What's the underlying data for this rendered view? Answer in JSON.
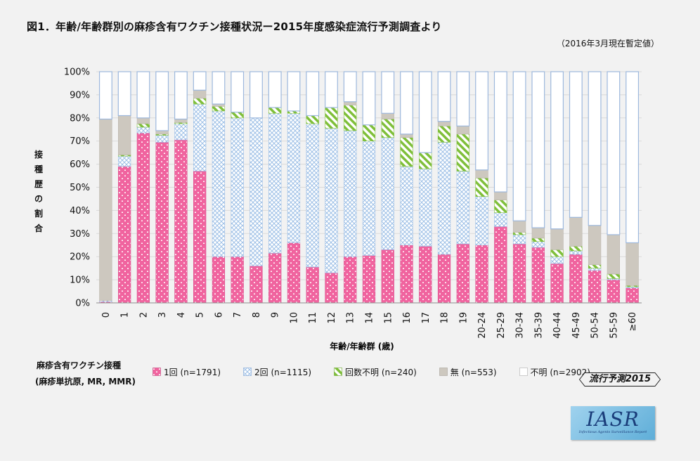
{
  "header": {
    "title": "図1．年齢/年齢群別の麻疹含有ワクチン接種状況ー2015年度感染症流行予測調査より",
    "note": "（2016年3月現在暫定値）"
  },
  "legend": {
    "title": "麻疹含有ワクチン接種",
    "subtitle": "(麻疹単抗原, MR, MMR)",
    "items": [
      {
        "label": "1回 (n=1791)"
      },
      {
        "label": "2回 (n=1115)"
      },
      {
        "label": "回数不明 (n=240)"
      },
      {
        "label": "無 (n=553)"
      },
      {
        "label": "不明 (n=2902)"
      }
    ]
  },
  "badge": {
    "label": "流行予測2015"
  },
  "logo": {
    "text": "IASR",
    "subtext": "Infectious Agents Surveillance Report"
  },
  "chart_data": {
    "type": "bar",
    "stacked": true,
    "xlabel": "年齢/年齢群 (歳)",
    "ylabel": "接種歴の割合",
    "ylim": [
      0,
      100
    ],
    "yticks": [
      "0%",
      "10%",
      "20%",
      "30%",
      "40%",
      "50%",
      "60%",
      "70%",
      "80%",
      "90%",
      "100%"
    ],
    "categories": [
      "0",
      "1",
      "2",
      "3",
      "4",
      "5",
      "6",
      "7",
      "8",
      "9",
      "10",
      "11",
      "12",
      "13",
      "14",
      "15",
      "16",
      "17",
      "18",
      "19",
      "20-24",
      "25-29",
      "30-34",
      "35-39",
      "40-44",
      "45-49",
      "50-54",
      "55-59",
      "≥60"
    ],
    "series": [
      {
        "name": "1回 (n=1791)",
        "color": "#f06aa3",
        "pattern": "pink",
        "values": [
          0.5,
          59,
          73.5,
          69.5,
          70.5,
          57,
          20,
          20,
          16,
          21.5,
          26,
          15.5,
          13,
          20,
          20.5,
          23,
          25,
          24.5,
          21,
          25.5,
          25,
          33,
          25.5,
          24,
          17,
          21,
          14,
          10,
          6.5
        ]
      },
      {
        "name": "2回 (n=1115)",
        "color": "#a9c8ec",
        "pattern": "blue",
        "values": [
          0.5,
          4.5,
          2.5,
          3,
          7,
          29,
          63,
          60,
          64,
          60.5,
          56,
          62,
          62.5,
          54.5,
          49.5,
          48.5,
          34,
          33.5,
          48.5,
          31.5,
          21,
          6,
          4,
          2.5,
          3,
          1.5,
          1,
          0.5,
          0.5
        ]
      },
      {
        "name": "回数不明 (n=240)",
        "color": "#8cc63f",
        "pattern": "green",
        "values": [
          0,
          0.5,
          1.5,
          0.5,
          0.5,
          2.5,
          2,
          2.5,
          0,
          2.5,
          1,
          3.5,
          9,
          11,
          7,
          8,
          12.5,
          7,
          7,
          16,
          8,
          5.5,
          1,
          1.5,
          3,
          2,
          1.5,
          2,
          0.5
        ]
      },
      {
        "name": "無 (n=553)",
        "color": "#cdc8bf",
        "pattern": "none",
        "values": [
          78.5,
          17,
          2.5,
          1.5,
          1.5,
          3.5,
          1,
          0,
          0,
          0,
          0,
          0,
          0,
          1.5,
          0,
          2.5,
          1.5,
          0,
          2,
          3.5,
          3.5,
          3.5,
          5,
          4.5,
          9,
          12.5,
          17,
          17,
          18.5
        ]
      },
      {
        "name": "不明 (n=2902)",
        "color": "#ffffff",
        "pattern": "none",
        "values": [
          20.5,
          19,
          20,
          25.5,
          20.5,
          8,
          14,
          17.5,
          20,
          15.5,
          17,
          19,
          15.5,
          13,
          23,
          18,
          27,
          35,
          21.5,
          23.5,
          42.5,
          52,
          64.5,
          67.5,
          68,
          63,
          66.5,
          70.5,
          74
        ]
      }
    ]
  }
}
